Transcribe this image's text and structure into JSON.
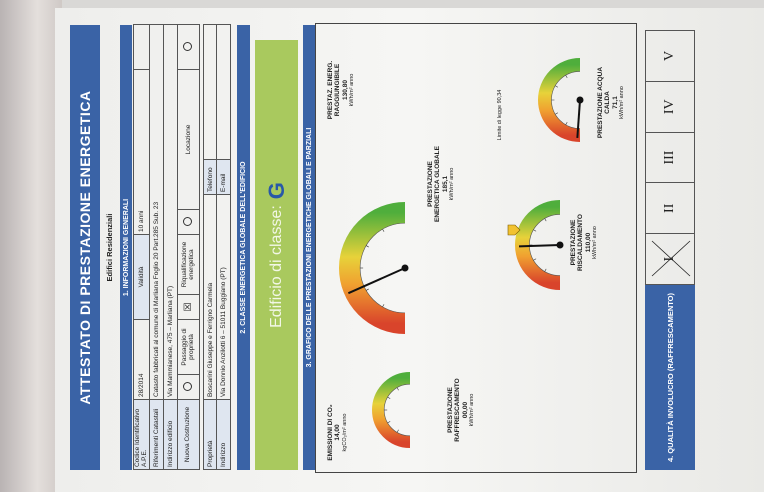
{
  "header": {
    "title": "ATTESTATO DI PRESTAZIONE ENERGETICA",
    "subtitle": "Edifici Residenziali"
  },
  "general": {
    "title": "1. INFORMAZIONI GENERALI",
    "code_label": "Codice Identificativo A.P.E.",
    "code": "28/2014",
    "validity_label": "Validità",
    "validity": "10 anni",
    "cadastral_label": "Riferimenti Catastali",
    "cadastral": "Catasto fabbricati al comune di Marliana Foglio 20 Part.285 Sub. 23",
    "address_label": "Indirizzo edificio",
    "address": "Via Mammianese, 475 – Marliana (PT)",
    "reasons": [
      "Nuova Costruzione",
      "Passaggio di proprietà",
      "Riqualificazione energetica",
      "Locazione"
    ]
  },
  "owner": {
    "label": "Proprietà",
    "name": "Boscarini Giuseppe e Ferrigno Carmela",
    "phone_label": "Telefono",
    "address_label": "Indirizzo",
    "address": "Via Donnio Anzilotti 6 – 51011 Buggiano (PT)",
    "email_label": "E-mail"
  },
  "energy_class": {
    "title": "2. CLASSE ENERGETICA GLOBALE DELL'EDIFICIO",
    "label": "Edificio di classe:",
    "class": "G"
  },
  "performance": {
    "title": "3. GRAFICO DELLE PRESTAZIONI ENERGETICHE GLOBALI E PARZIALI",
    "emissions": {
      "label": "EMISSIONI DI CO₂",
      "value": "14,00",
      "unit": "kgCO₂/m² anno"
    },
    "global": {
      "label": "PRESTAZIONE ENERGETICA GLOBALE",
      "value": "185,1",
      "unit": "kWh/m² anno"
    },
    "achievable": {
      "label": "PRESTAZ. ENERG. RAGGIUNGIBILE",
      "value": "130,80",
      "unit": "kWh/m² anno"
    },
    "cooling": {
      "label": "PRESTAZIONE RAFFRESCAMENTO",
      "value": "00,00",
      "unit": "kWh/m² anno"
    },
    "heating": {
      "label": "PRESTAZIONE RISCALDAMENTO",
      "value": "110,00",
      "unit": "kWh/m² anno"
    },
    "legal_limit": "Limite di legge 90,34",
    "hot_water": {
      "label": "PRESTAZIONE ACQUA CALDA",
      "value": "71,1",
      "unit": "kWh/m² anno"
    }
  },
  "envelope": {
    "title": "4. QUALITÀ INVOLUCRO (RAFFRESCAMENTO)",
    "classes": [
      "I",
      "II",
      "III",
      "IV",
      "V"
    ]
  }
}
